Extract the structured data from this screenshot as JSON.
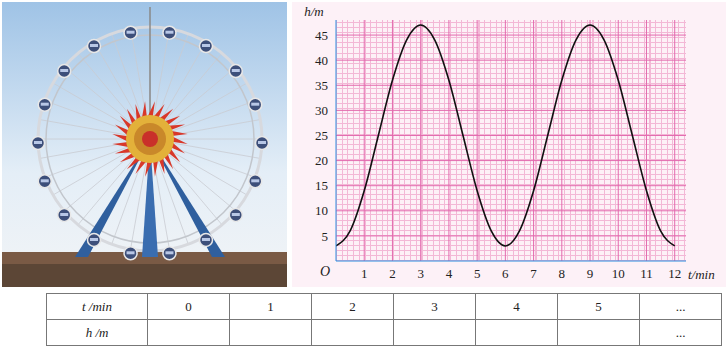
{
  "chart_data": {
    "type": "line",
    "xlabel": "t/min",
    "ylabel": "h/m",
    "annotations": [
      "O"
    ],
    "x": [
      0,
      0.5,
      1,
      1.5,
      2,
      2.5,
      3,
      3.5,
      4,
      4.5,
      5,
      5.5,
      6,
      6.5,
      7,
      7.5,
      8,
      8.5,
      9,
      9.5,
      10,
      10.5,
      11,
      11.5,
      12
    ],
    "values": [
      3,
      6,
      14,
      25,
      36,
      44,
      47,
      44,
      36,
      25,
      14,
      6,
      3,
      6,
      14,
      25,
      36,
      44,
      47,
      44,
      36,
      25,
      14,
      6,
      3
    ],
    "color": "#111111",
    "xlim": [
      0,
      12.4
    ],
    "ylim": [
      0,
      48
    ],
    "xticks": [
      1,
      2,
      3,
      4,
      5,
      6,
      7,
      8,
      9,
      10,
      11,
      12
    ],
    "yticks": [
      5,
      10,
      15,
      20,
      25,
      30,
      35,
      40,
      45
    ],
    "grid": true
  },
  "table": {
    "rows": [
      [
        "t /min",
        "0",
        "1",
        "2",
        "3",
        "4",
        "5",
        "..."
      ],
      [
        "h /m",
        null,
        null,
        null,
        null,
        null,
        null,
        "..."
      ]
    ]
  }
}
